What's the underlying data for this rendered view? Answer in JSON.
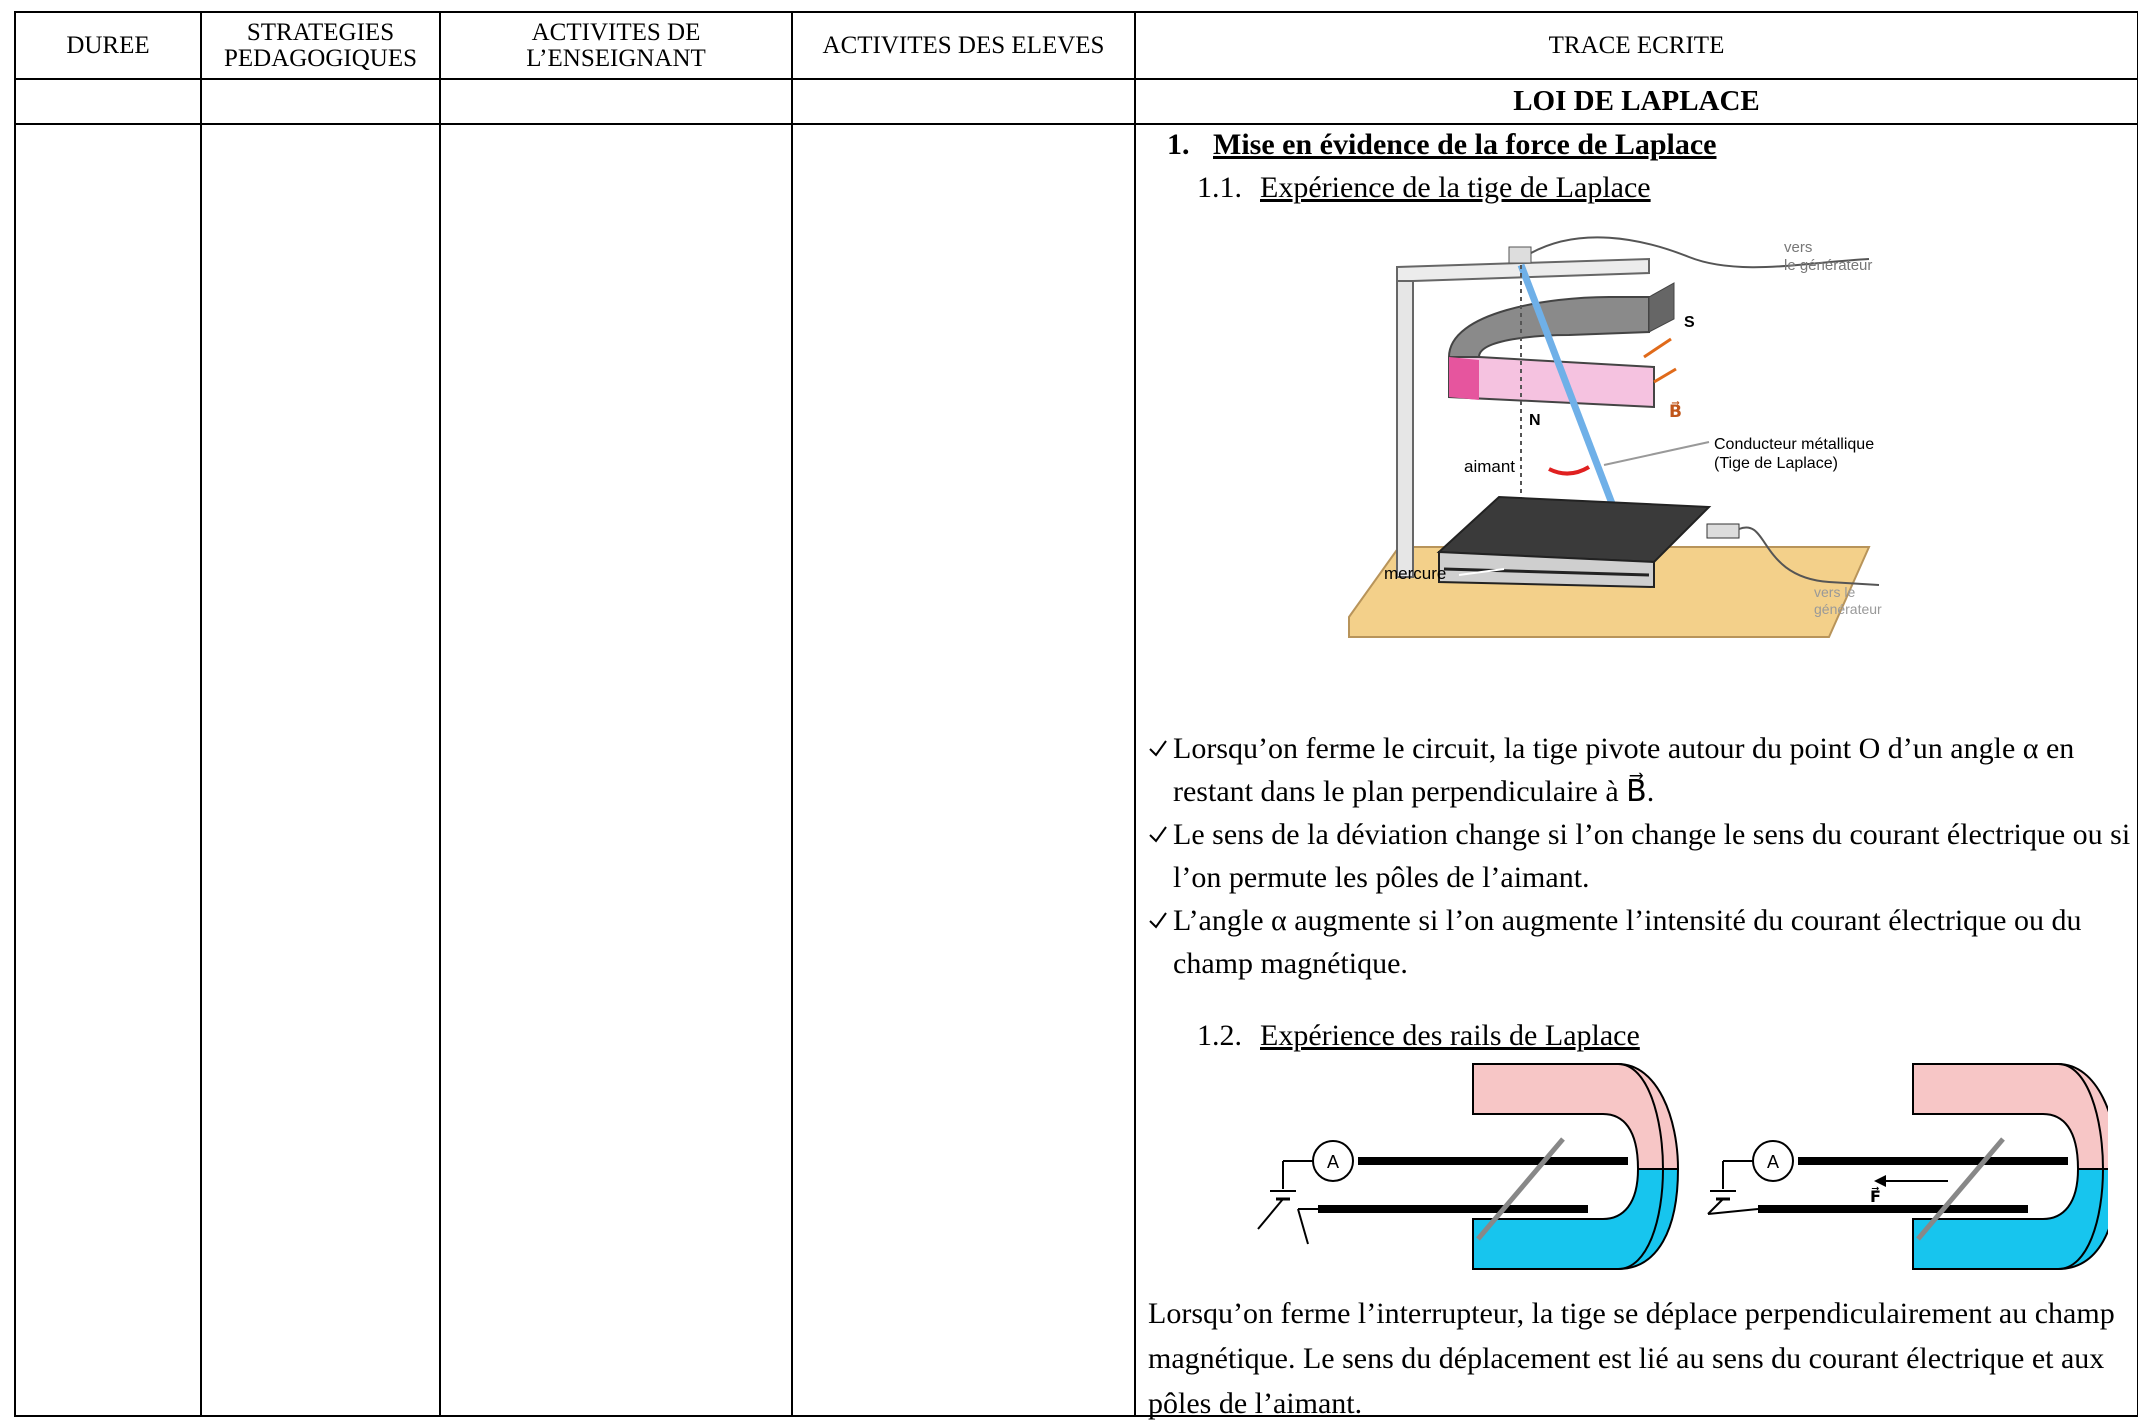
{
  "table": {
    "headers": [
      "DUREE",
      "STRATEGIES\nPEDAGOGIQUES",
      "ACTIVITES DE\nL’ENSEIGNANT",
      "ACTIVITES DES ELEVES",
      "TRACE ECRITE"
    ]
  },
  "lesson": {
    "title": "LOI DE LAPLACE",
    "section": {
      "number": "1.",
      "title": "Mise en évidence de la force de Laplace"
    },
    "sub1": {
      "number": "1.1.",
      "title": "Expérience de la tige de Laplace"
    },
    "figure1": {
      "generator_top": "vers\nle générateur",
      "south": "S",
      "north": "N",
      "field": "B⃗",
      "rod": "Conducteur métallique\n(Tige de Laplace)",
      "magnet": "aimant",
      "mercury": "mercure",
      "generator_bottom": "vers le\ngénérateur"
    },
    "observations": [
      "Lorsqu’on ferme le circuit, la tige pivote autour du point O d’un angle α en restant dans le plan perpendiculaire à B⃗.",
      "Le sens de la déviation change si l’on change le sens du courant électrique ou si l’on permute les pôles de l’aimant.",
      "L’angle α augmente si l’on augmente l’intensité du courant électrique ou du champ magnétique."
    ],
    "sub2": {
      "number": "1.2.",
      "title": "Expérience des rails de Laplace"
    },
    "figure2": {
      "ammeter_left": "A",
      "ammeter_right": "A",
      "force": "F⃗"
    },
    "conclusion": "Lorsqu’on ferme l’interrupteur, la tige se déplace perpendiculairement au champ magnétique. Le sens du déplacement est lié au sens du courant électrique et aux pôles de l’aimant."
  }
}
